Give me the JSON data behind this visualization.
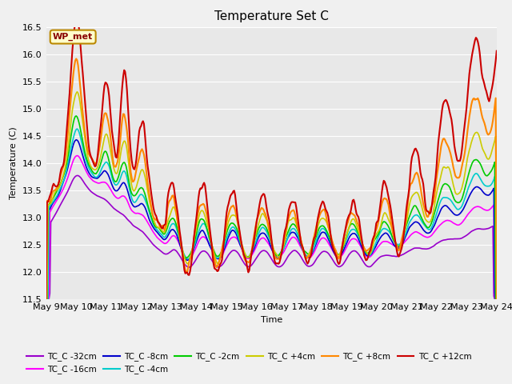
{
  "title": "Temperature Set C",
  "xlabel": "Time",
  "ylabel": "Temperature (C)",
  "ylim": [
    11.5,
    16.5
  ],
  "fig_bg": "#f0f0f0",
  "ax_bg": "#e8e8e8",
  "annotation_text": "WP_met",
  "annotation_bg": "#ffffcc",
  "annotation_border": "#bb8800",
  "series": [
    {
      "label": "TC_C -32cm",
      "color": "#9900cc"
    },
    {
      "label": "TC_C -16cm",
      "color": "#ff00ff"
    },
    {
      "label": "TC_C -8cm",
      "color": "#0000cc"
    },
    {
      "label": "TC_C -4cm",
      "color": "#00cccc"
    },
    {
      "label": "TC_C -2cm",
      "color": "#00cc00"
    },
    {
      "label": "TC_C +4cm",
      "color": "#cccc00"
    },
    {
      "label": "TC_C +8cm",
      "color": "#ff8800"
    },
    {
      "label": "TC_C +12cm",
      "color": "#cc0000"
    }
  ],
  "xtick_labels": [
    "May 9",
    "May 10",
    "May 11",
    "May 12",
    "May 13",
    "May 14",
    "May 15",
    "May 16",
    "May 17",
    "May 18",
    "May 19",
    "May 20",
    "May 21",
    "May 22",
    "May 23",
    "May 24"
  ],
  "legend_ncol_row1": 6,
  "n_points": 480
}
